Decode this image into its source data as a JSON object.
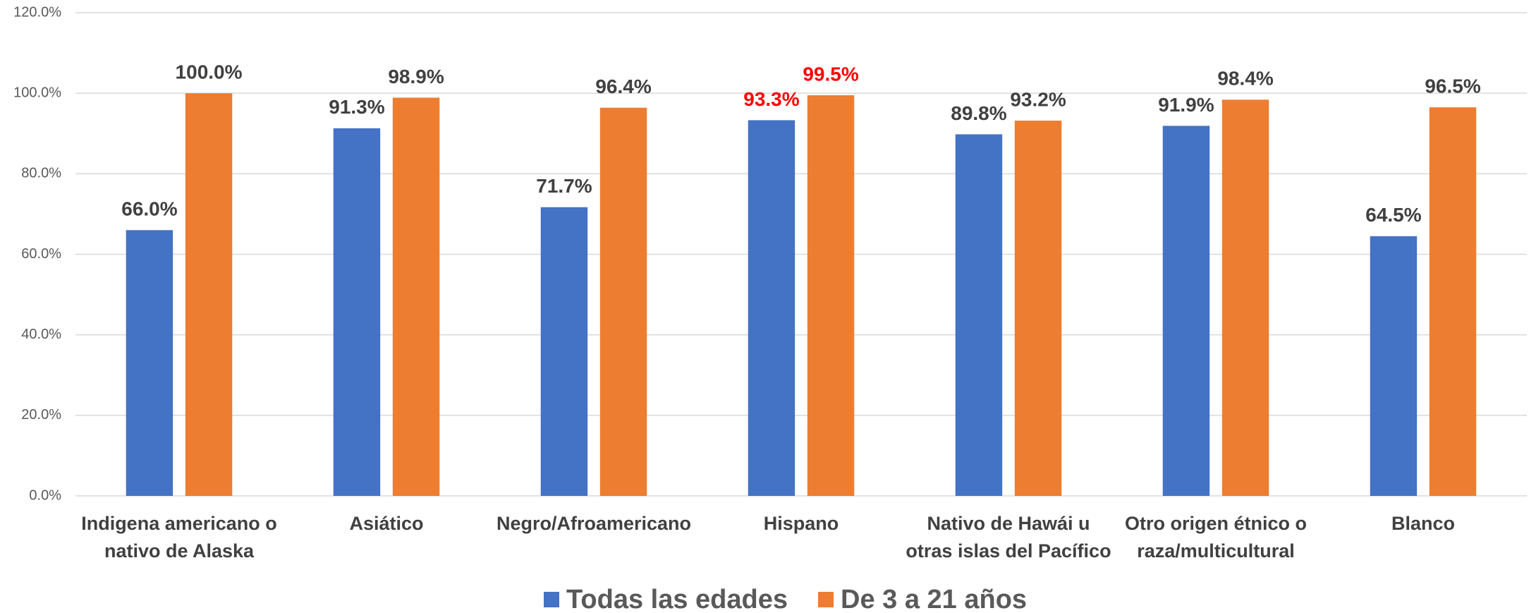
{
  "chart_data": {
    "type": "bar",
    "categories": [
      "Indigena americano o\nnativo de Alaska",
      "Asiático",
      "Negro/Afroamericano",
      "Hispano",
      "Nativo de Hawái u\notras islas del Pacífico",
      "Otro origen étnico o\nraza/multicultural",
      "Blanco"
    ],
    "series": [
      {
        "name": "Todas las edades",
        "color": "#4472c4",
        "values": [
          66.0,
          91.3,
          71.7,
          93.3,
          89.8,
          91.9,
          64.5
        ],
        "value_labels": [
          "66.0%",
          "91.3%",
          "71.7%",
          "93.3%",
          "89.8%",
          "91.9%",
          "64.5%"
        ]
      },
      {
        "name": "De 3 a 21 años",
        "color": "#ed7d31",
        "values": [
          100.0,
          98.9,
          96.4,
          99.5,
          93.2,
          98.4,
          96.5
        ],
        "value_labels": [
          "100.0%",
          "98.9%",
          "96.4%",
          "99.5%",
          "93.2%",
          "98.4%",
          "96.5%"
        ]
      }
    ],
    "highlight": {
      "categories": [
        "Hispano"
      ],
      "color": "#ff0000"
    },
    "ylim": [
      0,
      120
    ],
    "yticks": [
      {
        "value": 0,
        "label": "0.0%"
      },
      {
        "value": 20,
        "label": "20.0%"
      },
      {
        "value": 40,
        "label": "40.0%"
      },
      {
        "value": 60,
        "label": "60.0%"
      },
      {
        "value": 80,
        "label": "80.0%"
      },
      {
        "value": 100,
        "label": "100.0%"
      },
      {
        "value": 120,
        "label": "120.0%"
      }
    ],
    "grid": true,
    "legend": "bottom"
  }
}
